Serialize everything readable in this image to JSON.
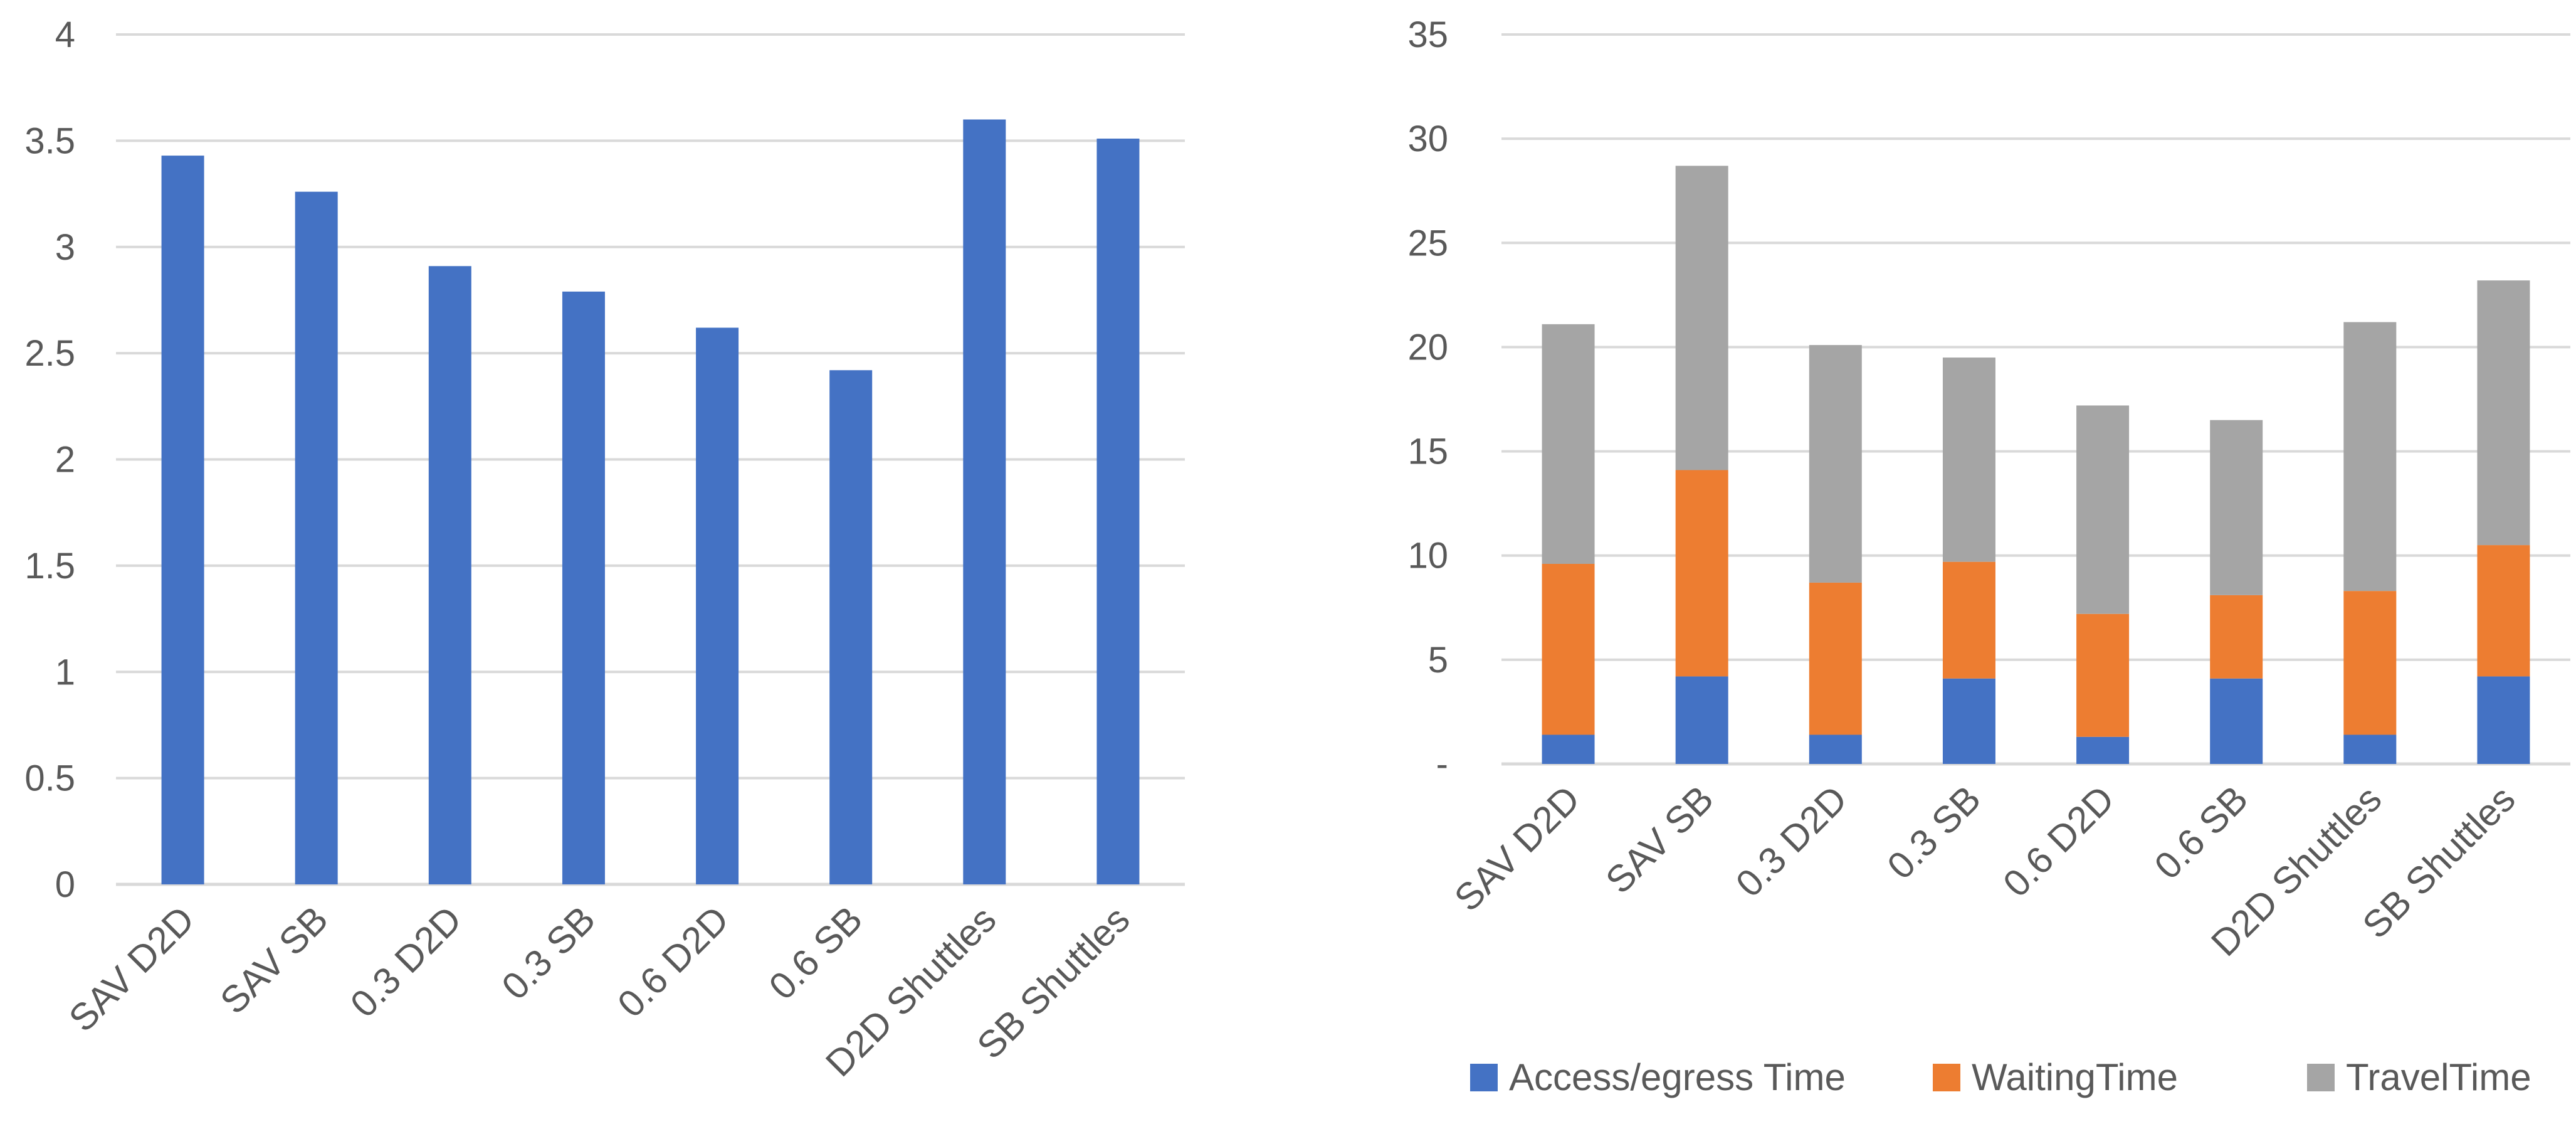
{
  "chart_data": [
    {
      "type": "bar",
      "categories": [
        "SAV D2D",
        "SAV SB",
        "0.3 D2D",
        "0.3 SB",
        "0.6 D2D",
        "0.6 SB",
        "D2D Shuttles",
        "SB Shuttles"
      ],
      "values": [
        3.43,
        3.26,
        2.91,
        2.79,
        2.62,
        2.42,
        3.6,
        3.51
      ],
      "yticks": [
        "0",
        "0.5",
        "1",
        "1.5",
        "2",
        "2.5",
        "3",
        "3.5",
        "4"
      ],
      "ylim": [
        0,
        4
      ],
      "grid": true,
      "colors": [
        "#4472c4"
      ]
    },
    {
      "type": "bar",
      "stacked": true,
      "categories": [
        "SAV D2D",
        "SAV SB",
        "0.3 D2D",
        "0.3 SB",
        "0.6 D2D",
        "0.6 SB",
        "D2D Shuttles",
        "SB Shuttles"
      ],
      "series": [
        {
          "name": "Access/egress Time",
          "color": "#4472c4",
          "values": [
            1.4,
            4.2,
            1.4,
            4.1,
            1.3,
            4.1,
            1.4,
            4.2
          ]
        },
        {
          "name": "WaitingTime",
          "color": "#ed7d31",
          "values": [
            8.2,
            9.9,
            7.3,
            5.6,
            5.9,
            4.0,
            6.9,
            6.3
          ]
        },
        {
          "name": "TravelTime",
          "color": "#a5a5a5",
          "values": [
            11.5,
            14.6,
            11.4,
            9.8,
            10.0,
            8.4,
            12.9,
            12.7
          ]
        }
      ],
      "yticks": [
        "-",
        "5",
        "10",
        "15",
        "20",
        "25",
        "30",
        "35"
      ],
      "ylim": [
        0,
        35
      ],
      "grid": true,
      "legend": "bottom"
    }
  ]
}
